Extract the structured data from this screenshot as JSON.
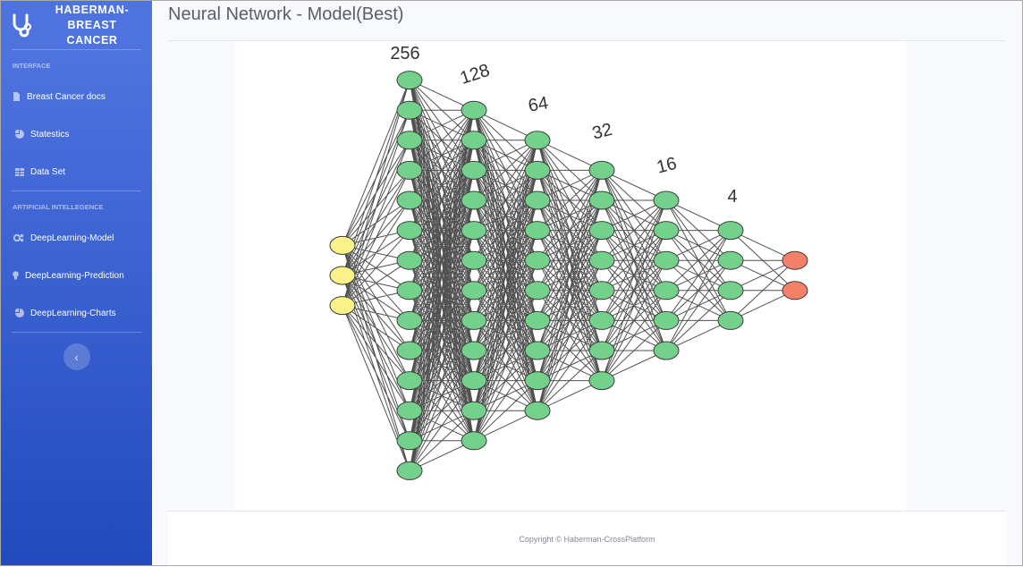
{
  "brand": {
    "line1": "HABERMAN-",
    "line2": "BREAST CANCER"
  },
  "sidebar": {
    "sections": [
      {
        "heading": "INTERFACE",
        "items": [
          {
            "label": "Breast Cancer docs",
            "icon": "file-icon"
          },
          {
            "label": "Statestics",
            "icon": "pie-chart-icon"
          },
          {
            "label": "Data Set",
            "icon": "table-icon"
          }
        ]
      },
      {
        "heading": "ARTIFICIAL INTELLEGENCE",
        "items": [
          {
            "label": "DeepLearning-Model",
            "icon": "cogs-icon"
          },
          {
            "label": "DeepLearning-Prediction",
            "icon": "lightbulb-icon"
          },
          {
            "label": "DeepLearning-Charts",
            "icon": "pie-chart-icon"
          }
        ]
      }
    ],
    "toggle_icon": "chevron-left-icon"
  },
  "page": {
    "title": "Neural Network - Model(Best)"
  },
  "network": {
    "layers": [
      {
        "size": 3,
        "label": "",
        "color": "#fbf28a"
      },
      {
        "size": 256,
        "label": "256",
        "color": "#73d18c"
      },
      {
        "size": 128,
        "label": "128",
        "color": "#73d18c"
      },
      {
        "size": 64,
        "label": "64",
        "color": "#73d18c"
      },
      {
        "size": 32,
        "label": "32",
        "color": "#73d18c"
      },
      {
        "size": 16,
        "label": "16",
        "color": "#73d18c"
      },
      {
        "size": 4,
        "label": "4",
        "color": "#73d18c"
      },
      {
        "size": 2,
        "label": "",
        "color": "#f5806a"
      }
    ],
    "edge_color": "#333333"
  },
  "footer": {
    "copyright": "Copyright © Haberman-CrossPlatform"
  }
}
